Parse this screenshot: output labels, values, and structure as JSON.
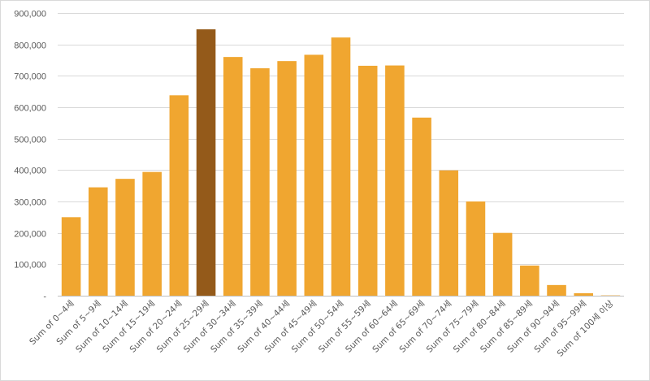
{
  "chart_data": {
    "type": "bar",
    "title": "",
    "xlabel": "",
    "ylabel": "",
    "ylim": [
      0,
      900000
    ],
    "yticks": [
      0,
      100000,
      200000,
      300000,
      400000,
      500000,
      600000,
      700000,
      800000,
      900000
    ],
    "ytick_labels": [
      "-",
      "100,000",
      "200,000",
      "300,000",
      "400,000",
      "500,000",
      "600,000",
      "700,000",
      "800,000",
      "900,000"
    ],
    "grid": true,
    "legend": "none",
    "categories": [
      "Sum of 0~4세",
      "Sum of 5~9세",
      "Sum of 10~14세",
      "Sum of 15~19세",
      "Sum of 20~24세",
      "Sum of 25~29세",
      "Sum of 30~34세",
      "Sum of 35~39세",
      "Sum of 40~44세",
      "Sum of 45~49세",
      "Sum of 50~54세",
      "Sum of 55~59세",
      "Sum of 60~64세",
      "Sum of 65~69세",
      "Sum of 70~74세",
      "Sum of 75~79세",
      "Sum of 80~84세",
      "Sum of 85~89세",
      "Sum of 90~94세",
      "Sum of 95~99세",
      "Sum of 100세 이상"
    ],
    "values": [
      250000,
      345000,
      372000,
      394000,
      638000,
      848000,
      760000,
      724000,
      747000,
      767000,
      822000,
      732000,
      733000,
      567000,
      399000,
      300000,
      200000,
      96000,
      34000,
      8000,
      1000
    ],
    "colors": {
      "bar": "#F0A630",
      "highlight": "#945A1A"
    },
    "highlight_index": 5
  }
}
